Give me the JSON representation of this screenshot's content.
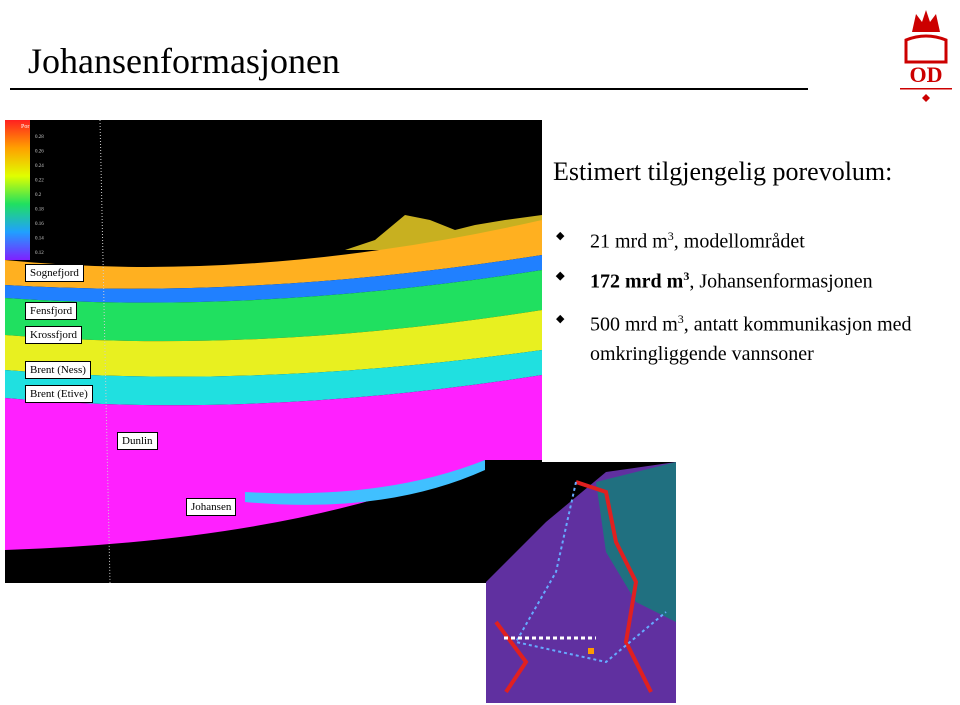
{
  "header": {
    "title": "Johansenformasjonen",
    "logo": "OD"
  },
  "section": {
    "scale_title": "Por",
    "scale_labels": [
      "0.28",
      "0.26",
      "0.24",
      "0.22",
      "0.2",
      "0.18",
      "0.16",
      "0.14",
      "0.12"
    ],
    "layers": [
      "Sognefjord",
      "Fensfjord",
      "Krossfjord",
      "Brent (Ness)",
      "Brent (Etive)",
      "Dunlin",
      "Johansen"
    ]
  },
  "content": {
    "heading": "Estimert tilgjengelig porevolum:",
    "bullets": [
      {
        "main": "21 mrd m",
        "sup": "3",
        "rest": ", modellområdet"
      },
      {
        "main": "172 mrd m",
        "sup": "3",
        "rest": ", Johansenformasjonen"
      },
      {
        "main": "500 mrd m",
        "sup": "3",
        "rest": ", antatt kommunikasjon med omkringliggende vannsoner"
      }
    ]
  }
}
